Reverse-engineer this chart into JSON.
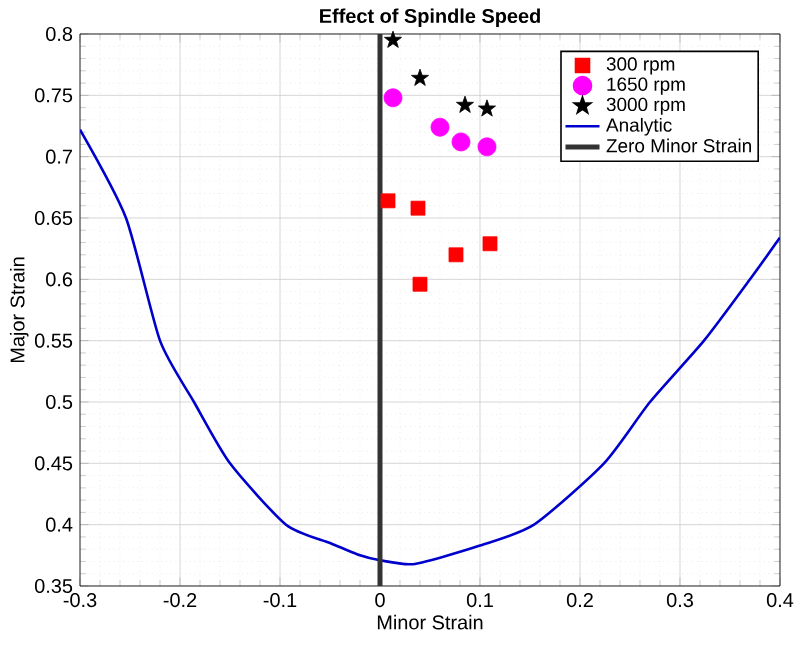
{
  "chart_data": {
    "type": "scatter",
    "title": "Effect of Spindle Speed",
    "xlabel": "Minor Strain",
    "ylabel": "Major Strain",
    "xlim": [
      -0.3,
      0.4
    ],
    "ylim": [
      0.35,
      0.8
    ],
    "xticks": [
      -0.3,
      -0.2,
      -0.1,
      0,
      0.1,
      0.2,
      0.3,
      0.4
    ],
    "yticks": [
      0.35,
      0.4,
      0.45,
      0.5,
      0.55,
      0.6,
      0.65,
      0.7,
      0.75,
      0.8
    ],
    "grid": true,
    "legend": "top right",
    "series": [
      {
        "name": "300 rpm",
        "marker": "square",
        "color": "#ff0000",
        "x": [
          0.008,
          0.038,
          0.076,
          0.11,
          0.04
        ],
        "values": [
          0.664,
          0.658,
          0.62,
          0.629,
          0.596
        ]
      },
      {
        "name": "1650 rpm",
        "marker": "circle",
        "color": "#ff00ff",
        "x": [
          0.013,
          0.06,
          0.081,
          0.107
        ],
        "values": [
          0.748,
          0.724,
          0.712,
          0.708
        ]
      },
      {
        "name": "3000 rpm",
        "marker": "star",
        "color": "#000000",
        "x": [
          0.013,
          0.04,
          0.085,
          0.107
        ],
        "values": [
          0.795,
          0.764,
          0.742,
          0.739
        ]
      },
      {
        "name": "Analytic",
        "type": "line",
        "color": "#0000cc",
        "x": [
          -0.3,
          -0.254,
          -0.22,
          -0.186,
          -0.15,
          -0.094,
          -0.05,
          -0.02,
          0,
          0.035,
          0.1,
          0.154,
          0.224,
          0.27,
          0.324,
          0.37,
          0.4
        ],
        "values": [
          0.722,
          0.65,
          0.55,
          0.5,
          0.45,
          0.4,
          0.385,
          0.375,
          0.371,
          0.368,
          0.383,
          0.4,
          0.45,
          0.5,
          0.55,
          0.6,
          0.634
        ]
      },
      {
        "name": "Zero Minor Strain",
        "type": "line",
        "color": "#333333",
        "x": [
          0,
          0
        ],
        "values": [
          0.35,
          0.8
        ]
      }
    ]
  }
}
